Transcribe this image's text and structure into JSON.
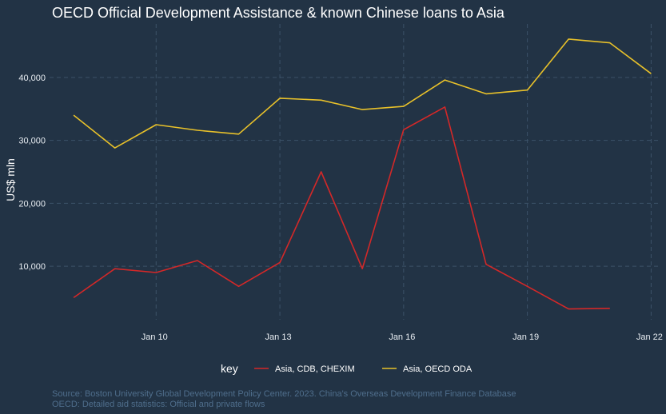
{
  "chart_data": {
    "type": "line",
    "title": "OECD Official Development Assistance & known Chinese loans to Asia",
    "xlabel": "",
    "ylabel": "US$ mln",
    "x_ticks": [
      "Jan 10",
      "Jan 13",
      "Jan 16",
      "Jan 19",
      "Jan 22"
    ],
    "y_ticks": [
      "10,000",
      "20,000",
      "30,000",
      "40,000"
    ],
    "ylim": [
      1500,
      48500
    ],
    "xlim": [
      "2007-06",
      "2022-03"
    ],
    "grid": true,
    "legend": {
      "title": "key",
      "placement": "bottom"
    },
    "series": [
      {
        "name": "Asia, CDB, CHEXIM",
        "color": "#d42828",
        "points": [
          [
            "2008-01",
            5000
          ],
          [
            "2009-01",
            9600
          ],
          [
            "2010-01",
            9000
          ],
          [
            "2011-01",
            10900
          ],
          [
            "2012-01",
            6800
          ],
          [
            "2013-01",
            10600
          ],
          [
            "2014-01",
            25000
          ],
          [
            "2015-01",
            9600
          ],
          [
            "2016-01",
            31700
          ],
          [
            "2017-01",
            35300
          ],
          [
            "2018-01",
            10300
          ],
          [
            "2019-01",
            6800
          ],
          [
            "2020-01",
            3200
          ],
          [
            "2021-01",
            3300
          ]
        ]
      },
      {
        "name": "Asia, OECD ODA",
        "color": "#e8c12a",
        "points": [
          [
            "2008-01",
            34000
          ],
          [
            "2009-01",
            28800
          ],
          [
            "2010-01",
            32500
          ],
          [
            "2011-01",
            31600
          ],
          [
            "2012-01",
            31000
          ],
          [
            "2013-01",
            36700
          ],
          [
            "2014-01",
            36400
          ],
          [
            "2015-01",
            34900
          ],
          [
            "2016-01",
            35400
          ],
          [
            "2017-01",
            39600
          ],
          [
            "2018-01",
            37400
          ],
          [
            "2019-01",
            38000
          ],
          [
            "2020-01",
            46100
          ],
          [
            "2021-01",
            45500
          ],
          [
            "2022-01",
            40600
          ]
        ]
      }
    ]
  },
  "caption": {
    "line1": "Source: Boston University Global Development Policy Center. 2023. China's Overseas Development Finance Database",
    "line2": "OECD: Detailed aid statistics: Official and private flows"
  }
}
